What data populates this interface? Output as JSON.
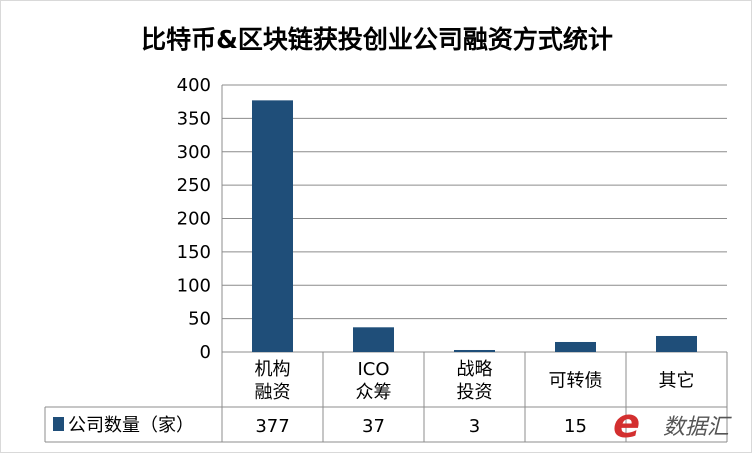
{
  "chart_data": {
    "type": "bar",
    "title": "比特币&区块链获投创业公司融资方式统计",
    "categories": [
      [
        "机构",
        "融资"
      ],
      [
        "ICO",
        "众筹"
      ],
      [
        "战略",
        "投资"
      ],
      [
        "可转债"
      ],
      [
        "其它"
      ]
    ],
    "series": [
      {
        "name": "公司数量（家）",
        "values": [
          377,
          37,
          3,
          15,
          24
        ],
        "table_labels": [
          "377",
          "37",
          "3",
          "15",
          ""
        ],
        "color": "#1f4e79"
      }
    ],
    "ylim": [
      0,
      400
    ],
    "yticks": [
      0,
      50,
      100,
      150,
      200,
      250,
      300,
      350,
      400
    ],
    "grid": true,
    "legend": "data-table"
  },
  "watermark": {
    "logo": "e",
    "text": "数据汇"
  }
}
